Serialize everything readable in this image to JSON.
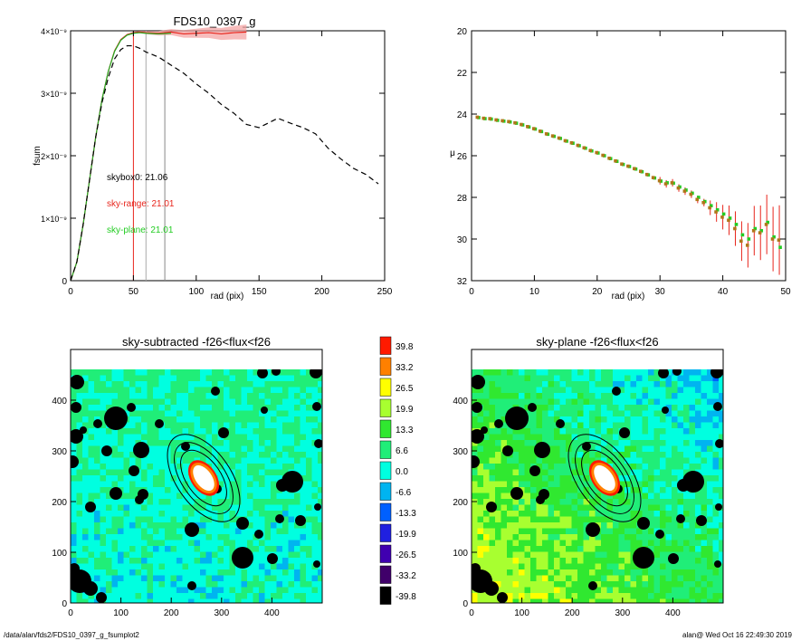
{
  "chart_data": [
    {
      "type": "line",
      "title": "FDS10_0397_g",
      "xlabel": "rad (pix)",
      "ylabel": "fsum",
      "xlim": [
        0,
        250
      ],
      "ylim": [
        0,
        4e-09
      ],
      "xticks": [
        "0",
        "50",
        "100",
        "150",
        "200",
        "250"
      ],
      "yticks": [
        {
          "value": 0,
          "label": "0"
        },
        {
          "value": 1e-09,
          "label": "1×10⁻⁹"
        },
        {
          "value": 2e-09,
          "label": "2×10⁻⁹"
        },
        {
          "value": 3e-09,
          "label": "3×10⁻⁹"
        },
        {
          "value": 4e-09,
          "label": "4×10⁻⁹"
        }
      ],
      "annotations": [
        "skybox0: 21.06",
        "sky-range: 21.01",
        "sky-plane: 21.01"
      ],
      "annotation_colors": [
        "#000000",
        "#e8251c",
        "#22cc22"
      ],
      "vlines": [
        {
          "x": 50,
          "color": "#e8251c"
        },
        {
          "x": 60,
          "color": "#aaaaaa"
        },
        {
          "x": 75,
          "color": "#888888"
        }
      ],
      "series": [
        {
          "style": "solid",
          "color": "#e8251c",
          "x": [
            0,
            5,
            10,
            15,
            20,
            25,
            30,
            35,
            40,
            45,
            50,
            55,
            60,
            70,
            80,
            90,
            100,
            110,
            120,
            130,
            140
          ],
          "y": [
            0,
            3e-10,
            9e-10,
            1.6e-09,
            2.3e-09,
            2.9e-09,
            3.35e-09,
            3.68e-09,
            3.86e-09,
            3.94e-09,
            3.97e-09,
            3.98e-09,
            3.97e-09,
            3.96e-09,
            3.98e-09,
            3.95e-09,
            3.96e-09,
            3.97e-09,
            3.95e-09,
            3.97e-09,
            3.98e-09
          ]
        },
        {
          "style": "solid",
          "color": "#22aa22",
          "x": [
            0,
            5,
            10,
            15,
            20,
            25,
            30,
            35,
            40,
            45,
            50,
            55,
            60,
            70,
            80
          ],
          "y": [
            0,
            3e-10,
            9e-10,
            1.6e-09,
            2.3e-09,
            2.9e-09,
            3.35e-09,
            3.67e-09,
            3.85e-09,
            3.93e-09,
            3.96e-09,
            3.97e-09,
            3.96e-09,
            3.95e-09,
            3.96e-09
          ]
        },
        {
          "style": "dashed",
          "color": "#000000",
          "x": [
            0,
            5,
            10,
            15,
            20,
            25,
            30,
            35,
            40,
            45,
            50,
            55,
            60,
            70,
            80,
            90,
            100,
            110,
            120,
            130,
            140,
            150,
            160,
            165,
            175,
            185,
            195,
            205,
            215,
            225,
            235,
            245
          ],
          "y": [
            0,
            3e-10,
            9e-10,
            1.6e-09,
            2.3e-09,
            2.85e-09,
            3.25e-09,
            3.55e-09,
            3.7e-09,
            3.76e-09,
            3.76e-09,
            3.72e-09,
            3.66e-09,
            3.58e-09,
            3.45e-09,
            3.32e-09,
            3.15e-09,
            3e-09,
            2.82e-09,
            2.68e-09,
            2.5e-09,
            2.45e-09,
            2.55e-09,
            2.6e-09,
            2.52e-09,
            2.45e-09,
            2.35e-09,
            2.12e-09,
            1.95e-09,
            1.8e-09,
            1.7e-09,
            1.55e-09
          ]
        }
      ]
    },
    {
      "type": "scatter",
      "xlabel": "rad (pix)",
      "ylabel": "μ",
      "xlim": [
        0,
        50
      ],
      "ylim": [
        32,
        20
      ],
      "xticks": [
        "0",
        "10",
        "20",
        "30",
        "40",
        "50"
      ],
      "yticks": [
        "20",
        "22",
        "24",
        "26",
        "28",
        "30",
        "32"
      ],
      "series": [
        {
          "color": "#e8251c",
          "x": [
            1,
            2,
            3,
            4,
            5,
            6,
            7,
            8,
            9,
            10,
            11,
            12,
            13,
            14,
            15,
            16,
            17,
            18,
            19,
            20,
            21,
            22,
            23,
            24,
            25,
            26,
            27,
            28,
            29,
            30,
            31,
            32,
            33,
            34,
            35,
            36,
            37,
            38,
            39,
            40,
            41,
            42,
            43,
            44,
            45,
            46,
            47,
            48,
            49
          ],
          "y": [
            24.15,
            24.2,
            24.22,
            24.28,
            24.32,
            24.36,
            24.42,
            24.5,
            24.6,
            24.7,
            24.82,
            24.95,
            25.05,
            25.15,
            25.28,
            25.38,
            25.5,
            25.62,
            25.75,
            25.85,
            25.98,
            26.12,
            26.25,
            26.4,
            26.5,
            26.62,
            26.75,
            26.9,
            27.05,
            27.2,
            27.35,
            27.3,
            27.55,
            27.7,
            27.85,
            28.1,
            28.25,
            28.5,
            28.7,
            28.95,
            29.1,
            29.5,
            30.1,
            30.3,
            29.6,
            29.7,
            29.3,
            30.0,
            30.05
          ]
        },
        {
          "color": "#22cc22",
          "x": [
            1,
            2,
            3,
            4,
            5,
            6,
            7,
            8,
            9,
            10,
            11,
            12,
            13,
            14,
            15,
            16,
            17,
            18,
            19,
            20,
            21,
            22,
            23,
            24,
            25,
            26,
            27,
            28,
            29,
            30,
            31,
            32,
            33,
            34,
            35,
            36,
            37,
            38,
            39,
            40,
            41,
            42,
            43,
            44,
            45,
            46,
            47,
            48,
            49
          ],
          "y": [
            24.17,
            24.22,
            24.24,
            24.3,
            24.34,
            24.38,
            24.44,
            24.52,
            24.62,
            24.72,
            24.84,
            24.97,
            25.07,
            25.17,
            25.3,
            25.4,
            25.52,
            25.64,
            25.77,
            25.87,
            26.0,
            26.14,
            26.27,
            26.42,
            26.52,
            26.64,
            26.77,
            26.92,
            27.07,
            27.22,
            27.3,
            27.32,
            27.5,
            27.65,
            27.8,
            28.0,
            28.2,
            28.4,
            28.6,
            28.8,
            29.0,
            29.3,
            29.8,
            30.0,
            29.5,
            29.6,
            29.2,
            29.9,
            30.4
          ]
        }
      ]
    },
    {
      "type": "heatmap",
      "title": "sky-subtracted -f26<flux<f26",
      "xlim": [
        0,
        500
      ],
      "ylim": [
        0,
        500
      ],
      "xticks": [
        "0",
        "100",
        "200",
        "300",
        "400"
      ],
      "yticks": [
        "0",
        "100",
        "200",
        "300",
        "400"
      ]
    },
    {
      "type": "heatmap",
      "title": "sky-plane -f26<flux<f26",
      "xlim": [
        0,
        500
      ],
      "ylim": [
        0,
        500
      ],
      "xticks": [
        "0",
        "100",
        "200",
        "300",
        "400"
      ],
      "yticks": [
        "0",
        "100",
        "200",
        "300",
        "400"
      ]
    }
  ],
  "colorbar": {
    "labels": [
      "39.8",
      "33.2",
      "26.5",
      "19.9",
      "13.3",
      "6.6",
      "0.0",
      "-6.6",
      "-13.3",
      "-19.9",
      "-26.5",
      "-33.2",
      "-39.8"
    ],
    "colors": [
      "#ff1a00",
      "#ff8000",
      "#ffff00",
      "#a8ff30",
      "#30e830",
      "#20ee78",
      "#00ffe0",
      "#00b4f0",
      "#0060ff",
      "#2020e0",
      "#4000b0",
      "#40006a",
      "#000000"
    ]
  },
  "footer": {
    "left": "/data/alan/fds2/FDS10_0397_g_fsumplot2",
    "right": "alan@  Wed Oct 16 22:49:30 2019"
  }
}
